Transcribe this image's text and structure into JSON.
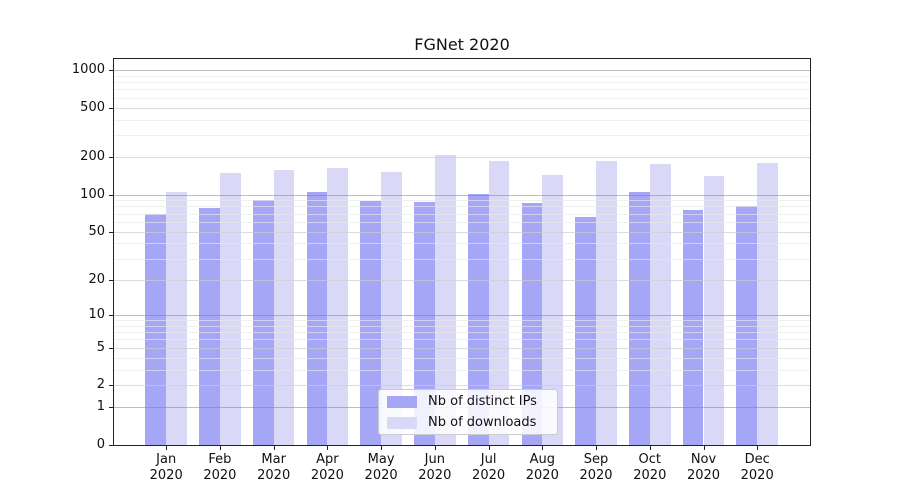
{
  "chart_data": {
    "type": "bar",
    "title": "FGNet 2020",
    "categories": [
      "Jan",
      "Feb",
      "Mar",
      "Apr",
      "May",
      "Jun",
      "Jul",
      "Aug",
      "Sep",
      "Oct",
      "Nov",
      "Dec"
    ],
    "year_label": "2020",
    "series": [
      {
        "name": "Nb of distinct IPs",
        "color": "#a6a6f7",
        "values": [
          70,
          78,
          90,
          105,
          88,
          87,
          100,
          86,
          66,
          104,
          75,
          81
        ]
      },
      {
        "name": "Nb of downloads",
        "color": "#d9d9f7",
        "values": [
          105,
          150,
          158,
          162,
          152,
          208,
          186,
          144,
          186,
          176,
          140,
          180
        ]
      }
    ],
    "yscale": "symlog",
    "ylim": [
      0,
      1100
    ],
    "yticks": [
      0,
      1,
      2,
      5,
      10,
      20,
      50,
      100,
      200,
      500,
      1000
    ],
    "grid": true,
    "legend_position": "lower center"
  },
  "legend": {
    "items": [
      {
        "label": "Nb of distinct IPs"
      },
      {
        "label": "Nb of downloads"
      }
    ]
  }
}
